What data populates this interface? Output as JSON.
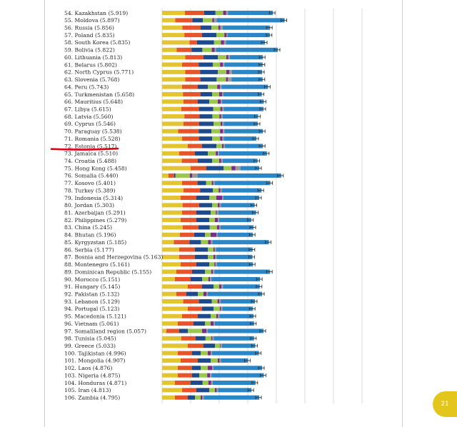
{
  "page_number": "21",
  "chart_data": {
    "type": "bar",
    "stacked": true,
    "orientation": "horizontal",
    "grid": true,
    "segment_colors": [
      "#e2c530",
      "#e8542a",
      "#1d4a8c",
      "#9bc84a",
      "#7a2b8e",
      "#9a9a9a",
      "#2b86c8"
    ],
    "errorbar_color": "#333333",
    "highlight": {
      "row": "72. Estonia (5.517)",
      "color": "#e0001a"
    },
    "rows": [
      {
        "rank": 54,
        "label": "54. Kazakhstan (5.919)",
        "segments": [
          0.8,
          0.67,
          0.4,
          0.27,
          0.1,
          0.07,
          1.57
        ]
      },
      {
        "rank": 55,
        "label": "55. Moldova (5.897)",
        "segments": [
          0.46,
          0.6,
          0.37,
          0.33,
          0.06,
          0.09,
          2.38
        ]
      },
      {
        "rank": 56,
        "label": "56. Russia (5.856)",
        "segments": [
          0.71,
          0.64,
          0.38,
          0.24,
          0.07,
          0.08,
          1.66
        ]
      },
      {
        "rank": 57,
        "label": "57. Poland (5.835)",
        "segments": [
          0.78,
          0.62,
          0.5,
          0.28,
          0.08,
          0.04,
          1.47
        ]
      },
      {
        "rank": 58,
        "label": "58. South Korea (5.835)",
        "segments": [
          0.96,
          0.26,
          0.6,
          0.24,
          0.11,
          0.07,
          1.36
        ]
      },
      {
        "rank": 59,
        "label": "59. Bolivia (5.822)",
        "segments": [
          0.51,
          0.52,
          0.38,
          0.33,
          0.1,
          0.05,
          2.16
        ]
      },
      {
        "rank": 60,
        "label": "60. Lithuania (5.813)",
        "segments": [
          0.81,
          0.64,
          0.5,
          0.3,
          0.07,
          0.05,
          1.16
        ]
      },
      {
        "rank": 61,
        "label": "61. Belarus (5.802)",
        "segments": [
          0.7,
          0.58,
          0.5,
          0.25,
          0.1,
          0.05,
          1.34
        ]
      },
      {
        "rank": 62,
        "label": "62. North Cyprus (5.771)",
        "segments": [
          0.81,
          0.52,
          0.62,
          0.3,
          0.1,
          0.1,
          1.05
        ]
      },
      {
        "rank": 63,
        "label": "63. Slovenia (5.768)",
        "segments": [
          0.81,
          0.53,
          0.57,
          0.33,
          0.06,
          0.13,
          1.09
        ]
      },
      {
        "rank": 64,
        "label": "64. Peru (5.743)",
        "segments": [
          0.7,
          0.55,
          0.35,
          0.33,
          0.1,
          0.05,
          1.63
        ]
      },
      {
        "rank": 65,
        "label": "65. Turkmenistan (5.658)",
        "segments": [
          0.73,
          0.62,
          0.4,
          0.25,
          0.1,
          0.05,
          1.34
        ]
      },
      {
        "rank": 66,
        "label": "66. Mauritius (5.648)",
        "segments": [
          0.75,
          0.5,
          0.4,
          0.3,
          0.1,
          0.05,
          1.46
        ]
      },
      {
        "rank": 67,
        "label": "67. Libya (5.615)",
        "segments": [
          0.67,
          0.62,
          0.5,
          0.25,
          0.07,
          0.05,
          1.39
        ]
      },
      {
        "rank": 68,
        "label": "68. Latvia (5.560)",
        "segments": [
          0.78,
          0.53,
          0.45,
          0.25,
          0.06,
          0.05,
          1.24
        ]
      },
      {
        "rank": 69,
        "label": "69. Cyprus (5.546)",
        "segments": [
          0.75,
          0.55,
          0.5,
          0.25,
          0.06,
          0.05,
          1.19
        ]
      },
      {
        "rank": 70,
        "label": "70. Paraguay (5.538)",
        "segments": [
          0.56,
          0.72,
          0.45,
          0.3,
          0.1,
          0.05,
          1.35
        ]
      },
      {
        "rank": 71,
        "label": "71. Romania (5.528)",
        "segments": [
          0.7,
          0.6,
          0.45,
          0.28,
          0.08,
          0.05,
          1.14
        ]
      },
      {
        "rank": 72,
        "label": "72. Estonia (5.517)",
        "segments": [
          0.9,
          0.5,
          0.5,
          0.2,
          0.05,
          0.05,
          1.33
        ]
      },
      {
        "rank": 73,
        "label": "73. Jamaica (5.510)",
        "segments": [
          0.6,
          0.55,
          0.45,
          0.28,
          0.07,
          0.05,
          1.67
        ]
      },
      {
        "rank": 74,
        "label": "74. Croatia (5.488)",
        "segments": [
          0.69,
          0.56,
          0.5,
          0.25,
          0.07,
          0.05,
          1.22
        ]
      },
      {
        "rank": 75,
        "label": "75. Hong Kong (5.458)",
        "segments": [
          1.0,
          0.55,
          0.6,
          0.28,
          0.14,
          0.18,
          0.65
        ]
      },
      {
        "rank": 76,
        "label": "76. Somalia (5.440)",
        "segments": [
          0.22,
          0.2,
          0.05,
          0.5,
          0.08,
          0.2,
          2.92
        ]
      },
      {
        "rank": 77,
        "label": "77. Kosovo (5.401)",
        "segments": [
          0.7,
          0.54,
          0.3,
          0.2,
          0.05,
          0.05,
          1.95
        ]
      },
      {
        "rank": 78,
        "label": "78. Turkey (5.389)",
        "segments": [
          0.75,
          0.58,
          0.45,
          0.2,
          0.06,
          0.05,
          1.39
        ]
      },
      {
        "rank": 79,
        "label": "79. Indonesia (5.314)",
        "segments": [
          0.65,
          0.55,
          0.45,
          0.25,
          0.2,
          0.05,
          1.25
        ]
      },
      {
        "rank": 80,
        "label": "80. Jordan (5.303)",
        "segments": [
          0.72,
          0.58,
          0.45,
          0.2,
          0.06,
          0.05,
          1.18
        ]
      },
      {
        "rank": 81,
        "label": "81. Azerbaijan (5.291)",
        "segments": [
          0.7,
          0.5,
          0.5,
          0.18,
          0.04,
          0.05,
          1.32
        ]
      },
      {
        "rank": 82,
        "label": "82. Philippines (5.279)",
        "segments": [
          0.65,
          0.55,
          0.45,
          0.2,
          0.1,
          0.05,
          1.12
        ]
      },
      {
        "rank": 83,
        "label": "83. China (5.245)",
        "segments": [
          0.72,
          0.55,
          0.4,
          0.25,
          0.08,
          0.05,
          1.15
        ]
      },
      {
        "rank": 84,
        "label": "84. Bhutan (5.196)",
        "segments": [
          0.62,
          0.5,
          0.38,
          0.2,
          0.2,
          0.05,
          1.23
        ]
      },
      {
        "rank": 85,
        "label": "85. Kyrgyzstan (5.185)",
        "segments": [
          0.41,
          0.55,
          0.4,
          0.25,
          0.1,
          0.05,
          1.98
        ]
      },
      {
        "rank": 86,
        "label": "86. Serbia (5.177)",
        "segments": [
          0.6,
          0.55,
          0.45,
          0.2,
          0.04,
          0.05,
          1.28
        ]
      },
      {
        "rank": 87,
        "label": "87. Bosnia and Herzegovina (5.163)",
        "segments": [
          0.6,
          0.55,
          0.45,
          0.2,
          0.06,
          0.05,
          1.25
        ]
      },
      {
        "rank": 88,
        "label": "88. Montenegro (5.161)",
        "segments": [
          0.65,
          0.55,
          0.45,
          0.18,
          0.04,
          0.05,
          1.26
        ]
      },
      {
        "rank": 89,
        "label": "89. Dominican Republic (5.155)",
        "segments": [
          0.5,
          0.55,
          0.45,
          0.22,
          0.06,
          0.05,
          1.95
        ]
      },
      {
        "rank": 90,
        "label": "90. Morocco (5.151)",
        "segments": [
          0.45,
          0.55,
          0.4,
          0.22,
          0.06,
          0.05,
          1.7
        ]
      },
      {
        "rank": 91,
        "label": "91. Hungary (5.145)",
        "segments": [
          0.9,
          0.5,
          0.4,
          0.2,
          0.08,
          0.05,
          1.29
        ]
      },
      {
        "rank": 92,
        "label": "92. Pakistan (5.132)",
        "segments": [
          0.5,
          0.35,
          0.4,
          0.2,
          0.1,
          0.05,
          1.9
        ]
      },
      {
        "rank": 93,
        "label": "93. Lebanon (5.129)",
        "segments": [
          0.74,
          0.55,
          0.45,
          0.2,
          0.06,
          0.05,
          1.2
        ]
      },
      {
        "rank": 94,
        "label": "94. Portugal (5.123)",
        "segments": [
          0.9,
          0.5,
          0.4,
          0.22,
          0.04,
          0.05,
          1.07
        ]
      },
      {
        "rank": 95,
        "label": "95. Macedonia (5.121)",
        "segments": [
          0.7,
          0.55,
          0.45,
          0.2,
          0.06,
          0.05,
          1.19
        ]
      },
      {
        "rank": 96,
        "label": "96. Vietnam (5.061)",
        "segments": [
          0.55,
          0.55,
          0.4,
          0.2,
          0.1,
          0.05,
          1.37
        ]
      },
      {
        "rank": 97,
        "label": "97. Somaliland region (5.057)",
        "segments": [
          0.15,
          0.45,
          0.3,
          0.5,
          0.15,
          0.05,
          1.95
        ]
      },
      {
        "rank": 98,
        "label": "98. Tunisia (5.045)",
        "segments": [
          0.67,
          0.5,
          0.35,
          0.2,
          0.04,
          0.05,
          1.41
        ]
      },
      {
        "rank": 99,
        "label": "99. Greece (5.033)",
        "segments": [
          0.9,
          0.55,
          0.4,
          0.18,
          0.02,
          0.05,
          1.16
        ]
      },
      {
        "rank": 100,
        "label": "100. Tajikistan (4.996)",
        "segments": [
          0.55,
          0.5,
          0.3,
          0.25,
          0.1,
          0.05,
          1.64
        ]
      },
      {
        "rank": 101,
        "label": "101. Mongolia (4.907)",
        "segments": [
          0.65,
          0.6,
          0.45,
          0.25,
          0.06,
          0.05,
          0.95
        ]
      },
      {
        "rank": 102,
        "label": "102. Laos (4.876)",
        "segments": [
          0.55,
          0.5,
          0.3,
          0.25,
          0.15,
          0.05,
          1.7
        ]
      },
      {
        "rank": 103,
        "label": "103. Nigeria (4.875)",
        "segments": [
          0.55,
          0.5,
          0.25,
          0.28,
          0.1,
          0.05,
          1.83
        ]
      },
      {
        "rank": 104,
        "label": "104. Honduras (4.871)",
        "segments": [
          0.45,
          0.55,
          0.42,
          0.2,
          0.1,
          0.05,
          1.5
        ]
      },
      {
        "rank": 105,
        "label": "105. Iran (4.813)",
        "segments": [
          0.7,
          0.5,
          0.45,
          0.2,
          0.06,
          0.05,
          1.17
        ]
      },
      {
        "rank": 106,
        "label": "106. Zambia (4.795)",
        "segments": [
          0.45,
          0.45,
          0.25,
          0.2,
          0.06,
          0.05,
          1.94
        ]
      }
    ]
  }
}
